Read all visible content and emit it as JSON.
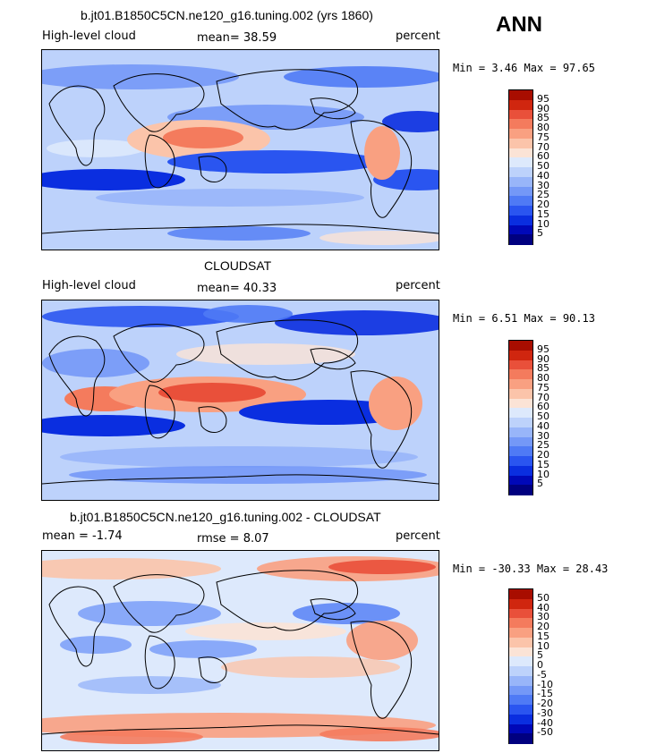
{
  "season": "ANN",
  "panels": [
    {
      "title": "b.jt01.B1850C5CN.ne120_g16.tuning.002 (yrs 1860)",
      "left_label": "High-level cloud",
      "center_label": "mean=   38.59",
      "right_label": "percent",
      "minmax": "Min =    3.46 Max =   97.65",
      "bar_labels": [
        "95",
        "90",
        "85",
        "80",
        "75",
        "70",
        "60",
        "50",
        "40",
        "30",
        "25",
        "20",
        "15",
        "10",
        "5"
      ]
    },
    {
      "title": "CLOUDSAT",
      "left_label": "High-level cloud",
      "center_label": "mean=   40.33",
      "right_label": "percent",
      "minmax": "Min =    6.51 Max =   90.13",
      "bar_labels": [
        "95",
        "90",
        "85",
        "80",
        "75",
        "70",
        "60",
        "50",
        "40",
        "30",
        "25",
        "20",
        "15",
        "10",
        "5"
      ]
    },
    {
      "title": "b.jt01.B1850C5CN.ne120_g16.tuning.002 - CLOUDSAT",
      "left_label": "mean =   -1.74",
      "center_label": "rmse =    8.07",
      "right_label": "percent",
      "minmax": "Min = -30.33 Max =  28.43",
      "bar_labels": [
        "50",
        "40",
        "30",
        "20",
        "15",
        "10",
        "5",
        "0",
        "-5",
        "-10",
        "-15",
        "-20",
        "-30",
        "-40",
        "-50"
      ]
    }
  ],
  "colors": {
    "scale": [
      "#000080",
      "#0008b8",
      "#0a2ee0",
      "#2a55f0",
      "#4f7af5",
      "#7498f7",
      "#98b5f9",
      "#bdd2fb",
      "#dde9fc",
      "#fbe3d6",
      "#fbc4aa",
      "#f9a081",
      "#f47b5d",
      "#e9503a",
      "#d0260f",
      "#a80d00"
    ]
  }
}
